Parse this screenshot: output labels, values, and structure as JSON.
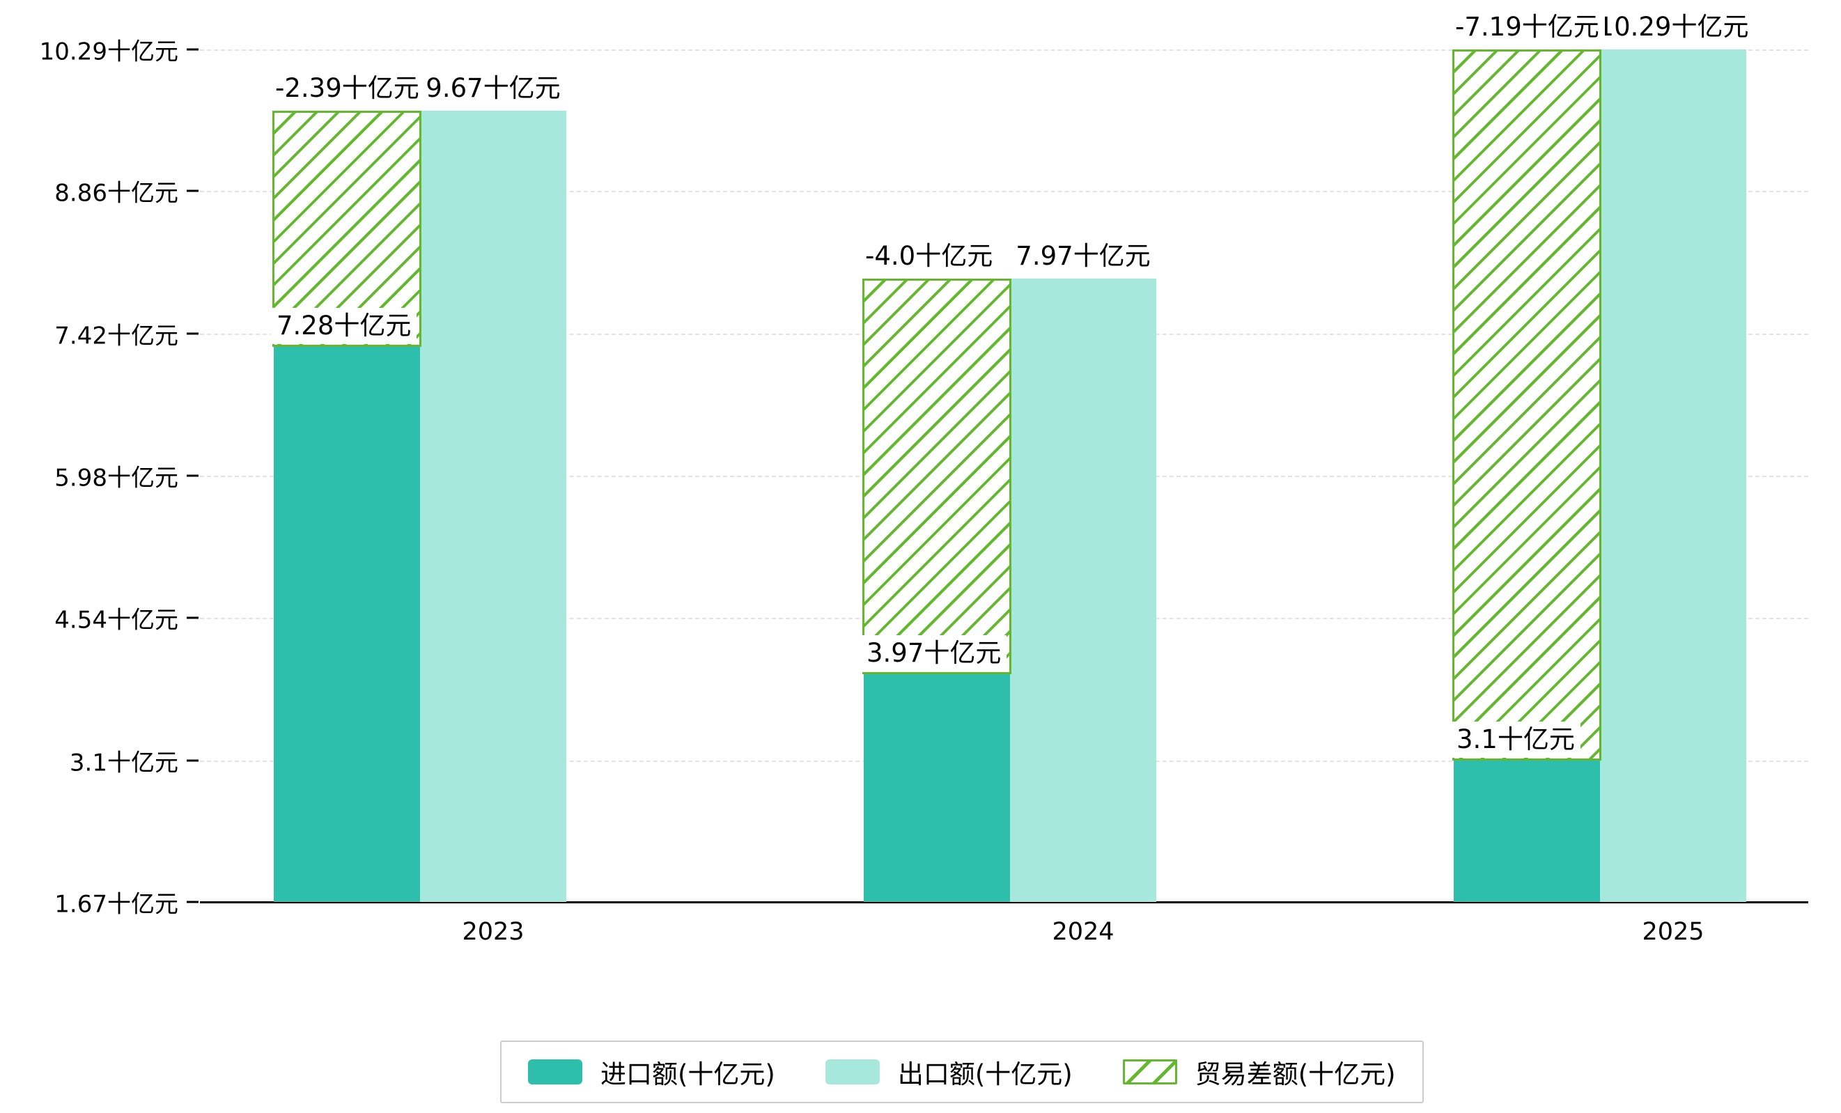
{
  "chart_data": {
    "type": "bar",
    "categories": [
      "2023",
      "2024",
      "2025"
    ],
    "series": [
      {
        "name": "进口额(十亿元)",
        "values": [
          7.28,
          3.97,
          3.1
        ],
        "value_labels": [
          "7.28十亿元",
          "3.97十亿元",
          "3.1十亿元"
        ],
        "color": "#2ebfac",
        "pattern": "solid"
      },
      {
        "name": "出口额(十亿元)",
        "values": [
          9.67,
          7.97,
          10.29
        ],
        "value_labels": [
          "9.67十亿元",
          "7.97十亿元",
          "10.29十亿元"
        ],
        "color": "#a6e8dc",
        "pattern": "solid"
      },
      {
        "name": "贸易差额(十亿元)",
        "values": [
          -2.39,
          -4.0,
          -7.19
        ],
        "value_labels": [
          "-2.39十亿元",
          "-4.0十亿元",
          "-7.19十亿元"
        ],
        "color": "#63b82e",
        "pattern": "diagonal-hatch",
        "note": "floating bar spanning from import value up to export value"
      }
    ],
    "y_ticks": [
      {
        "value": 1.67,
        "label": "1.67十亿元"
      },
      {
        "value": 3.1,
        "label": "3.1十亿元"
      },
      {
        "value": 4.54,
        "label": "4.54十亿元"
      },
      {
        "value": 5.98,
        "label": "5.98十亿元"
      },
      {
        "value": 7.42,
        "label": "7.42十亿元"
      },
      {
        "value": 8.86,
        "label": "8.86十亿元"
      },
      {
        "value": 10.29,
        "label": "10.29十亿元"
      }
    ],
    "ylim": [
      1.67,
      10.29
    ],
    "unit": "十亿元",
    "xlabel": "",
    "ylabel": "",
    "title": "",
    "grid": true,
    "legend_position": "bottom",
    "axis_color": "#000000",
    "grid_color": "#e3e3e3",
    "background": "#ffffff"
  }
}
